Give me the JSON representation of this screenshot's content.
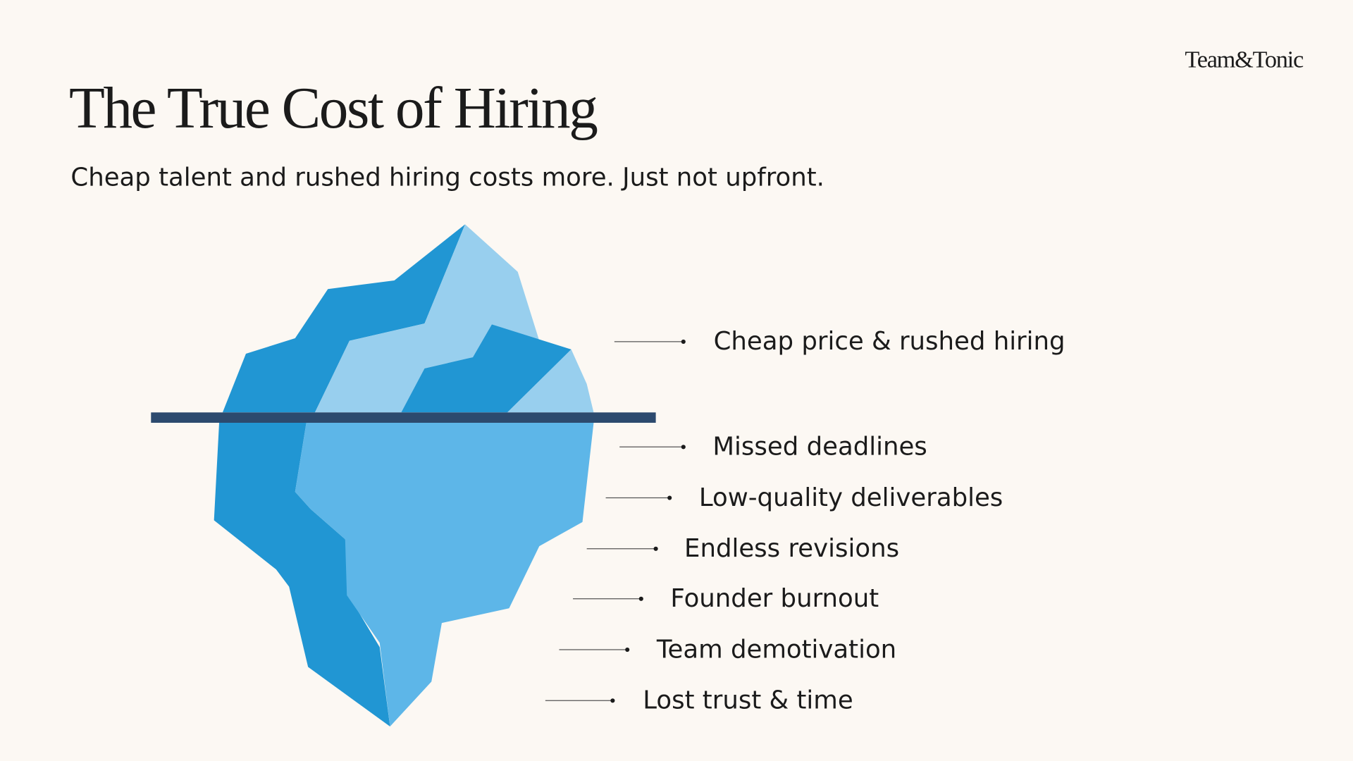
{
  "header": {
    "brand": "Team&Tonic",
    "title": "The True Cost of Hiring",
    "subtitle": "Cheap talent and rushed hiring costs more. Just not upfront."
  },
  "iceberg": {
    "above_surface": [
      "Cheap price & rushed hiring"
    ],
    "below_surface": [
      "Missed deadlines",
      "Low-quality deliverables",
      "Endless revisions",
      "Founder burnout",
      "Team demotivation",
      "Lost trust & time"
    ]
  }
}
